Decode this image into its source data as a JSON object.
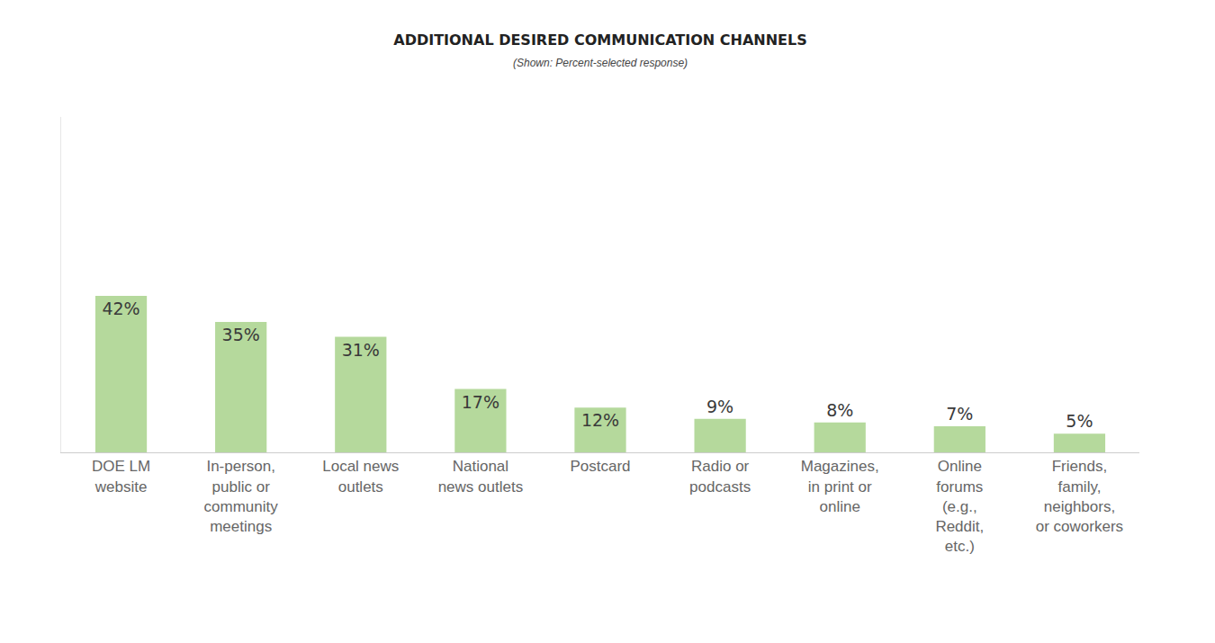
{
  "chart_data": {
    "type": "bar",
    "title": "ADDITIONAL DESIRED COMMUNICATION CHANNELS",
    "subtitle": "(Shown: Percent-selected response)",
    "categories": [
      "DOE LM website",
      "In-person, public or community meetings",
      "Local news outlets",
      "National news outlets",
      "Postcard",
      "Radio or podcasts",
      "Magazines, in print or online",
      "Online forums (e.g., Reddit, etc.)",
      "Friends, family, neighbors, or coworkers"
    ],
    "values": [
      42,
      35,
      31,
      17,
      12,
      9,
      8,
      7,
      5
    ],
    "value_labels": [
      "42%",
      "35%",
      "31%",
      "17%",
      "12%",
      "9%",
      "8%",
      "7%",
      "5%"
    ],
    "color": "#b5d99c",
    "ylim": [
      0,
      90
    ],
    "yticks": [
      0
    ],
    "grid": false,
    "data_labels": true,
    "tick_labels": "x"
  }
}
